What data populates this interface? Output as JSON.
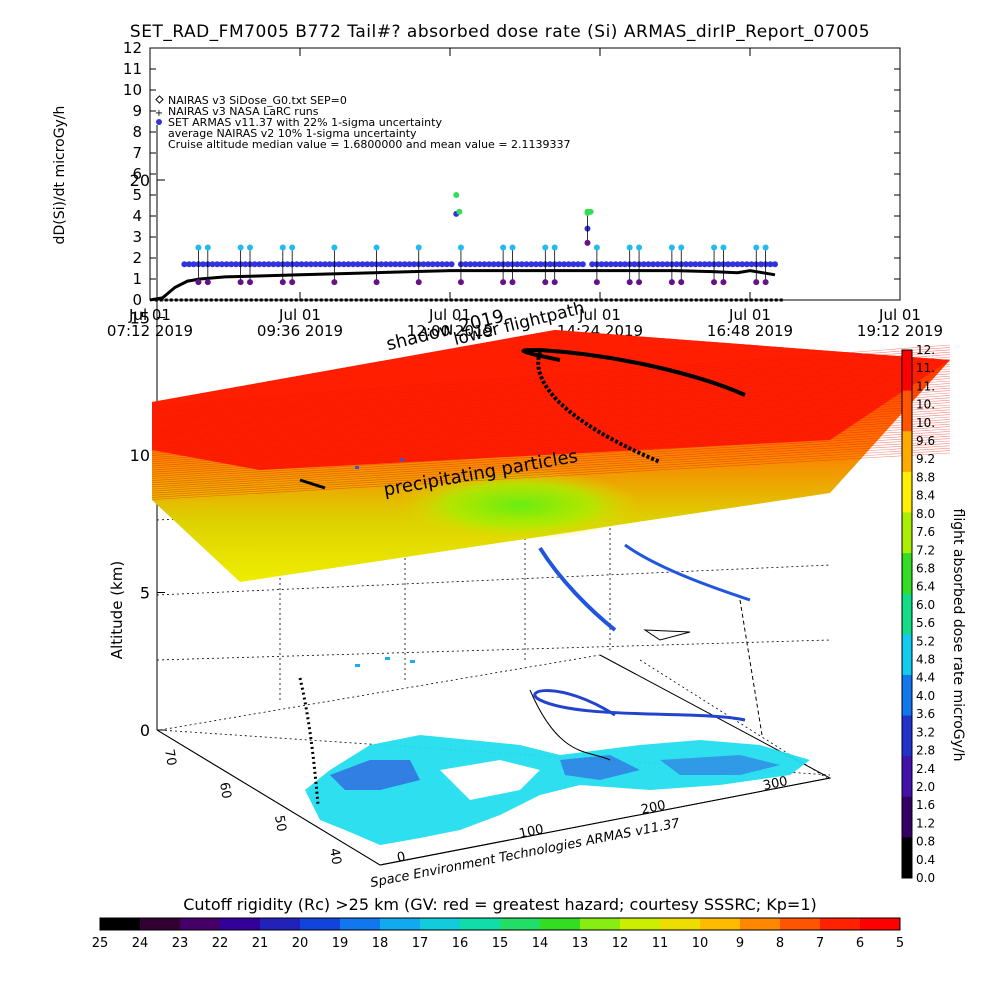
{
  "title": "SET_RAD_FM7005  B772 Tail#? absorbed dose rate (Si) ARMAS_dirIP_Report_07005",
  "chart_data": [
    {
      "type": "scatter",
      "ylabel": "dD(Si)/dt microGy/h",
      "ylim": [
        0,
        12
      ],
      "yticks": [
        "0",
        "1",
        "2",
        "3",
        "4",
        "5",
        "6",
        "7",
        "8",
        "9",
        "10",
        "11",
        "12"
      ],
      "xticks": [
        {
          "l1": "Jul 01",
          "l2": "07:12 2019"
        },
        {
          "l1": "Jul 01",
          "l2": "09:36 2019"
        },
        {
          "l1": "Jul 01",
          "l2": "12:00 2019"
        },
        {
          "l1": "Jul 01",
          "l2": "14:24 2019"
        },
        {
          "l1": "Jul 01",
          "l2": "16:48 2019"
        },
        {
          "l1": "Jul 01",
          "l2": "19:12 2019"
        }
      ],
      "xlim_hours": [
        7.2,
        19.2
      ],
      "legend": [
        "NAIRAS v3 SiDose_G0.txt SEP=0",
        "NAIRAS v3 NASA LaRC runs",
        "SET ARMAS v11.37 with 22% 1-sigma uncertainty",
        "average NAIRAS v2 10% 1-sigma uncertainty",
        "Cruise altitude median value = 1.6800000 and mean value = 2.1139337"
      ],
      "legend_position": "top-left",
      "colors": {
        "armas": "#3333dd",
        "upper": "#22bbee",
        "lower": "#661188",
        "nairas": "#000000",
        "spike": "#33dd55"
      },
      "series": [
        {
          "name": "SET ARMAS v11.37 with 22% 1-sigma uncertainty",
          "x": [
            7.8,
            8.4,
            9.0,
            9.6,
            10.2,
            10.8,
            11.4,
            11.9,
            12.1,
            12.4,
            12.8,
            13.4,
            13.9,
            14.2,
            14.6,
            15.2,
            15.8,
            16.4,
            16.8,
            17.2
          ],
          "y": [
            1.7,
            1.7,
            1.7,
            1.7,
            1.7,
            1.7,
            1.7,
            1.7,
            4.1,
            1.7,
            1.7,
            1.7,
            1.7,
            3.4,
            1.7,
            1.7,
            1.7,
            1.7,
            1.7,
            1.7
          ]
        },
        {
          "name": "NAIRAS v3 NASA LaRC runs",
          "x": [
            7.2,
            7.4,
            7.6,
            7.8,
            8.0,
            8.4,
            9.0,
            9.6,
            10.2,
            10.8,
            11.4,
            12.0,
            12.6,
            13.2,
            13.8,
            14.4,
            15.0,
            15.6,
            16.2,
            16.6,
            16.8,
            17.0,
            17.2
          ],
          "y": [
            0,
            0.1,
            0.6,
            0.9,
            1.0,
            1.1,
            1.15,
            1.2,
            1.25,
            1.3,
            1.35,
            1.4,
            1.4,
            1.4,
            1.4,
            1.4,
            1.4,
            1.4,
            1.35,
            1.3,
            1.4,
            1.3,
            1.2
          ]
        }
      ]
    },
    {
      "type": "heatmap",
      "zlabel": "Altitude (km)",
      "zticks": [
        "0",
        "5",
        "10",
        "15",
        "20"
      ],
      "lat_ticks": [
        "70",
        "60",
        "50",
        "40"
      ],
      "lon_ticks": [
        "0",
        "100",
        "200",
        "300"
      ],
      "colorbar": {
        "label": "flight absorbed dose rate microGy/h",
        "min": 0.0,
        "max": 12.0,
        "ticks": [
          "12.",
          "11.",
          "11.",
          "10.",
          "10.",
          "9.6",
          "9.2",
          "8.8",
          "8.4",
          "8.0",
          "7.6",
          "7.2",
          "6.8",
          "6.4",
          "6.0",
          "5.6",
          "5.2",
          "4.8",
          "4.4",
          "4.0",
          "3.6",
          "3.2",
          "2.8",
          "2.4",
          "2.0",
          "1.6",
          "1.2",
          "0.8",
          "0.4",
          "0.0"
        ]
      },
      "annotations": [
        "shadow 2019",
        "lower flightpath",
        "precipitating particles"
      ]
    },
    {
      "type": "heatmap",
      "title": "Cutoff rigidity (Rc) >25 km (GV: red = greatest hazard; courtesy SSSRC; Kp=1)",
      "ticks": [
        "25",
        "24",
        "23",
        "22",
        "21",
        "20",
        "19",
        "18",
        "17",
        "16",
        "15",
        "14",
        "13",
        "12",
        "11",
        "10",
        "9",
        "8",
        "7",
        "6",
        "5"
      ]
    }
  ],
  "credit": "Space Environment Technologies ARMAS v11.37"
}
